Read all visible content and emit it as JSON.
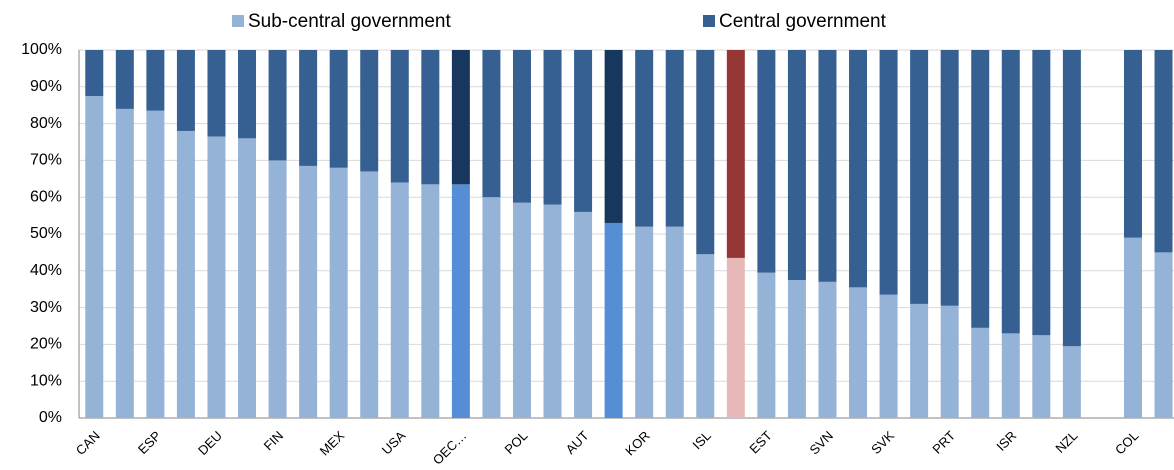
{
  "chart_data": {
    "type": "bar",
    "stacked": true,
    "categories": [
      "CAN",
      null,
      "ESP",
      null,
      "DEU",
      null,
      "FIN",
      null,
      "MEX",
      null,
      "USA",
      null,
      "OEC…",
      null,
      "POL",
      null,
      "AUT",
      null,
      "KOR",
      null,
      "ISL",
      null,
      "EST",
      null,
      "SVN",
      null,
      "SVK",
      null,
      "PRT",
      null,
      "ISR",
      null,
      "NZL",
      null,
      "COL",
      null
    ],
    "series": [
      {
        "name": "Sub-central government",
        "color": "#95b3d7",
        "colors": [
          "#95b3d7",
          "#95b3d7",
          "#95b3d7",
          "#95b3d7",
          "#95b3d7",
          "#95b3d7",
          "#95b3d7",
          "#95b3d7",
          "#95b3d7",
          "#95b3d7",
          "#95b3d7",
          "#95b3d7",
          "#558ed5",
          "#95b3d7",
          "#95b3d7",
          "#95b3d7",
          "#95b3d7",
          "#558ed5",
          "#95b3d7",
          "#95b3d7",
          "#95b3d7",
          "#e6b9b8",
          "#95b3d7",
          "#95b3d7",
          "#95b3d7",
          "#95b3d7",
          "#95b3d7",
          "#95b3d7",
          "#95b3d7",
          "#95b3d7",
          "#95b3d7",
          "#95b3d7",
          "#95b3d7",
          "#95b3d7",
          "#95b3d7",
          "#95b3d7"
        ],
        "values": [
          87.5,
          84,
          83.5,
          78,
          76.5,
          76,
          70,
          68.5,
          68,
          67,
          64,
          63.5,
          63.5,
          60,
          58.5,
          58,
          56,
          53,
          52,
          52,
          44.5,
          43.5,
          39.5,
          37.5,
          37,
          35.5,
          33.5,
          31,
          30.5,
          24.5,
          23,
          22.5,
          19.5,
          null,
          49,
          45
        ]
      },
      {
        "name": "Central government",
        "color": "#376092",
        "colors": [
          "#376092",
          "#376092",
          "#376092",
          "#376092",
          "#376092",
          "#376092",
          "#376092",
          "#376092",
          "#376092",
          "#376092",
          "#376092",
          "#376092",
          "#17375e",
          "#376092",
          "#376092",
          "#376092",
          "#376092",
          "#17375e",
          "#376092",
          "#376092",
          "#376092",
          "#953735",
          "#376092",
          "#376092",
          "#376092",
          "#376092",
          "#376092",
          "#376092",
          "#376092",
          "#376092",
          "#376092",
          "#376092",
          "#376092",
          "#376092",
          "#376092",
          "#376092"
        ],
        "values": [
          12.5,
          16,
          16.5,
          22,
          23.5,
          24,
          30,
          31.5,
          32,
          33,
          36,
          36.5,
          36.5,
          40,
          41.5,
          42,
          44,
          47,
          48,
          48,
          55.5,
          56.5,
          60.5,
          62.5,
          63,
          64.5,
          66.5,
          69,
          69.5,
          75.5,
          77,
          77.5,
          80.5,
          null,
          51,
          55
        ]
      }
    ],
    "ylim": [
      0,
      100
    ],
    "yticks": [
      {
        "value": 0,
        "label": "0%"
      },
      {
        "value": 10,
        "label": "10%"
      },
      {
        "value": 20,
        "label": "20%"
      },
      {
        "value": 30,
        "label": "30%"
      },
      {
        "value": 40,
        "label": "40%"
      },
      {
        "value": 50,
        "label": "50%"
      },
      {
        "value": 60,
        "label": "60%"
      },
      {
        "value": 70,
        "label": "70%"
      },
      {
        "value": 80,
        "label": "80%"
      },
      {
        "value": 90,
        "label": "90%"
      },
      {
        "value": 100,
        "label": "100%"
      }
    ],
    "grid": true,
    "legend": "top"
  }
}
